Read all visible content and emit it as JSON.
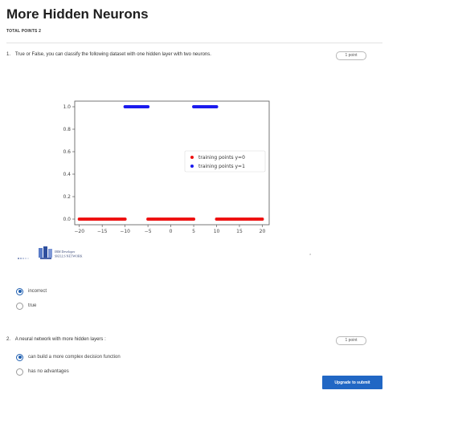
{
  "header": {
    "title": "More Hidden Neurons",
    "total_points": "TOTAL POINTS 2"
  },
  "questions": [
    {
      "number": "1.",
      "text": "True or False, you can classify the following dataset with one hidden layer with two neurons.",
      "points": "1 point",
      "options": [
        {
          "label": "incorrect",
          "selected": true
        },
        {
          "label": "true",
          "selected": false
        }
      ]
    },
    {
      "number": "2.",
      "text": "A neural network with more hidden layers :",
      "points": "1 point",
      "options": [
        {
          "label": "can build a more complex decision function",
          "selected": true
        },
        {
          "label": "has no advantages",
          "selected": false
        }
      ]
    }
  ],
  "logo": {
    "line1": "IBM Developer",
    "line2": "SKILLS NETWORK"
  },
  "footer": {
    "submit_label": "Upgrade to submit"
  },
  "chart_data": {
    "type": "scatter",
    "xlim": [
      -21,
      21.5
    ],
    "ylim": [
      -0.05,
      1.05
    ],
    "xticks": [
      -20,
      -15,
      -10,
      -5,
      0,
      5,
      10,
      15,
      20
    ],
    "yticks": [
      0.0,
      0.2,
      0.4,
      0.6,
      0.8,
      1.0
    ],
    "xtick_labels": [
      "−20",
      "−15",
      "−10",
      "−5",
      "0",
      "5",
      "10",
      "15",
      "20"
    ],
    "ytick_labels": [
      "0.0",
      "0.2",
      "0.4",
      "0.6",
      "0.8",
      "1.0"
    ],
    "legend_position": "center-right",
    "series": [
      {
        "name": "training points y=0",
        "color": "#ee1111",
        "y": 0,
        "ranges": [
          [
            -20,
            -10
          ],
          [
            -5,
            5
          ],
          [
            10,
            20
          ]
        ]
      },
      {
        "name": "training points y=1",
        "color": "#1a1aee",
        "y": 1,
        "ranges": [
          [
            -10,
            -5
          ],
          [
            5,
            10
          ]
        ]
      }
    ]
  }
}
